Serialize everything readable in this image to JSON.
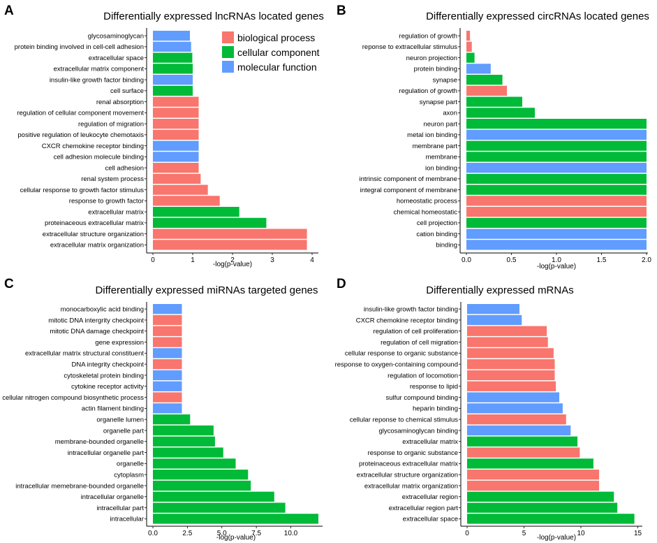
{
  "colors": {
    "biological process": "#F8766D",
    "cellular component": "#00BA38",
    "molecular function": "#619CFF"
  },
  "legend": [
    {
      "label": "biological process",
      "key": "biological process"
    },
    {
      "label": "cellular component",
      "key": "cellular component"
    },
    {
      "label": "molecular function",
      "key": "molecular function"
    }
  ],
  "chart_data": [
    {
      "panel": "A",
      "type": "bar",
      "orientation": "horizontal",
      "title": "Differentially expressed lncRNAs located  genes",
      "xlabel": "-log(p-value)",
      "xlim": [
        0,
        4
      ],
      "xticks": [
        0,
        1,
        2,
        3,
        4
      ],
      "xtick_labels": [
        "0",
        "1",
        "2",
        "3",
        "4"
      ],
      "categories": [
        "glycosaminoglycan",
        "protein binding involved in cell-cell adhesion",
        "extracellular space",
        "extracellular matrix component",
        "insulin-like growth factor binding",
        "cell surface",
        "renal absorption",
        "regulation of cellular component movement",
        "regulation of migration",
        "positive regulation of leukocyte chemotaxis",
        "CXCR chemokine receptor binding",
        "cell adhesion molecule binding",
        "cell adhesion",
        "renal system process",
        "cellular response to growth factor stimulus",
        "response to growth factor",
        "extracellular matrix",
        "proteinaceous extracellular matrix",
        "extracellular structure organization",
        "extracellular matrix organization"
      ],
      "values": [
        0.93,
        0.96,
        0.99,
        1.0,
        1.0,
        1.0,
        1.15,
        1.15,
        1.15,
        1.15,
        1.15,
        1.15,
        1.15,
        1.2,
        1.38,
        1.68,
        2.17,
        2.85,
        3.87,
        3.87
      ],
      "groups": [
        "molecular function",
        "molecular function",
        "cellular component",
        "cellular component",
        "molecular function",
        "cellular component",
        "biological process",
        "biological process",
        "biological process",
        "biological process",
        "molecular function",
        "molecular function",
        "biological process",
        "biological process",
        "biological process",
        "biological process",
        "cellular component",
        "cellular component",
        "biological process",
        "biological process"
      ]
    },
    {
      "panel": "B",
      "type": "bar",
      "orientation": "horizontal",
      "title": "Differentially expressed circRNAs located  genes",
      "xlabel": "-log(p-value)",
      "xlim": [
        0,
        2
      ],
      "xticks": [
        0,
        0.5,
        1,
        1.5,
        2
      ],
      "xtick_labels": [
        "0.0",
        "0.5",
        "1.0",
        "1.5",
        "2.0"
      ],
      "categories": [
        "regulation of growth",
        "reponse to extracellular stimulus",
        "neuron projection",
        "protein binding",
        "synapse",
        "regulation of growth",
        "synapse part",
        "axon",
        "neuron part",
        "metal ion binding",
        "membrane part",
        "membrane",
        "ion binding",
        "intrinsic component of membrane",
        "integral component of membrane",
        "homeostatic process",
        "chemical homeostatic",
        "cell projection",
        "cation binding",
        "binding"
      ],
      "values": [
        0.04,
        0.06,
        0.09,
        0.27,
        0.4,
        0.45,
        0.62,
        0.76,
        2.0,
        2.0,
        2.0,
        2.0,
        2.0,
        2.0,
        2.0,
        2.0,
        2.0,
        2.0,
        2.0,
        2.0
      ],
      "groups": [
        "biological process",
        "biological process",
        "cellular component",
        "molecular function",
        "cellular component",
        "biological process",
        "cellular component",
        "cellular component",
        "cellular component",
        "molecular function",
        "cellular component",
        "cellular component",
        "molecular function",
        "cellular component",
        "cellular component",
        "biological process",
        "biological process",
        "cellular component",
        "molecular function",
        "molecular function"
      ]
    },
    {
      "panel": "C",
      "type": "bar",
      "orientation": "horizontal",
      "title": "Differentially expressed miRNAs targeted genes",
      "xlabel": "-log(p-value)",
      "xlim": [
        0,
        12.3
      ],
      "xticks": [
        0,
        2.5,
        5,
        7.5,
        10
      ],
      "xtick_labels": [
        "0.0",
        "2.5",
        "5.0",
        "7.5",
        "10.0"
      ],
      "categories": [
        "monocarboxylic acid binding",
        "mitotic DNA intergrity checkpoint",
        "mitotic DNA damage checkpoint",
        "gene expression",
        "extracellular matrix structural constituent",
        "DNA integrity checkpoint",
        "cytoskeletal protein binding",
        "cytokine receptor activity",
        "cellular nitrogen compound biosynthetic process",
        "actin filament binding",
        "organelle lumen",
        "organelle part",
        "membrane-bounded organelle",
        "intracellular organelle part",
        "organelle",
        "cytoplasm",
        "intracellular memebrane-bounded organelle",
        "intracellular organelle",
        "intracellular part",
        "intracellular"
      ],
      "values": [
        2.1,
        2.1,
        2.1,
        2.1,
        2.1,
        2.1,
        2.1,
        2.1,
        2.1,
        2.1,
        2.7,
        4.4,
        4.5,
        5.1,
        6.0,
        6.9,
        7.1,
        8.8,
        9.6,
        12.0
      ],
      "groups": [
        "molecular function",
        "biological process",
        "biological process",
        "biological process",
        "molecular function",
        "biological process",
        "molecular function",
        "molecular function",
        "biological process",
        "molecular function",
        "cellular component",
        "cellular component",
        "cellular component",
        "cellular component",
        "cellular component",
        "cellular component",
        "cellular component",
        "cellular component",
        "cellular component",
        "cellular component"
      ]
    },
    {
      "panel": "D",
      "type": "bar",
      "orientation": "horizontal",
      "title": "Differentially expressed mRNAs",
      "xlabel": "-log(p-value)",
      "xlim": [
        0,
        15.2
      ],
      "xticks": [
        0,
        5,
        10,
        15
      ],
      "xtick_labels": [
        "0",
        "5",
        "10",
        "15"
      ],
      "categories": [
        "insulin-like growth factor binding",
        "CXCR chemokine receptor binding",
        "regulation of cell proliferation",
        "regulation of cell migration",
        "cellular response to organic substance",
        "response to oxygen-containing compound",
        "regulation of locomotion",
        "response to lipid",
        "sulfur compound binding",
        "heparin binding",
        "cellular reponse to chemical stimulus",
        "glycosaminoglycan binding",
        "extracellular matrix",
        "response to organic substance",
        "proteinaceous extracellular matrix",
        "extracellular structure organization",
        "extracellular matrix organization",
        "extracellular region",
        "extracellular region part",
        "extracellular space"
      ],
      "values": [
        4.6,
        4.8,
        7.0,
        7.1,
        7.6,
        7.7,
        7.7,
        7.8,
        8.1,
        8.4,
        8.7,
        9.1,
        9.7,
        9.9,
        11.1,
        11.6,
        11.6,
        12.9,
        13.2,
        14.7
      ],
      "groups": [
        "molecular function",
        "molecular function",
        "biological process",
        "biological process",
        "biological process",
        "biological process",
        "biological process",
        "biological process",
        "molecular function",
        "molecular function",
        "biological process",
        "molecular function",
        "cellular component",
        "biological process",
        "cellular component",
        "biological process",
        "biological process",
        "cellular component",
        "cellular component",
        "cellular component"
      ]
    }
  ]
}
